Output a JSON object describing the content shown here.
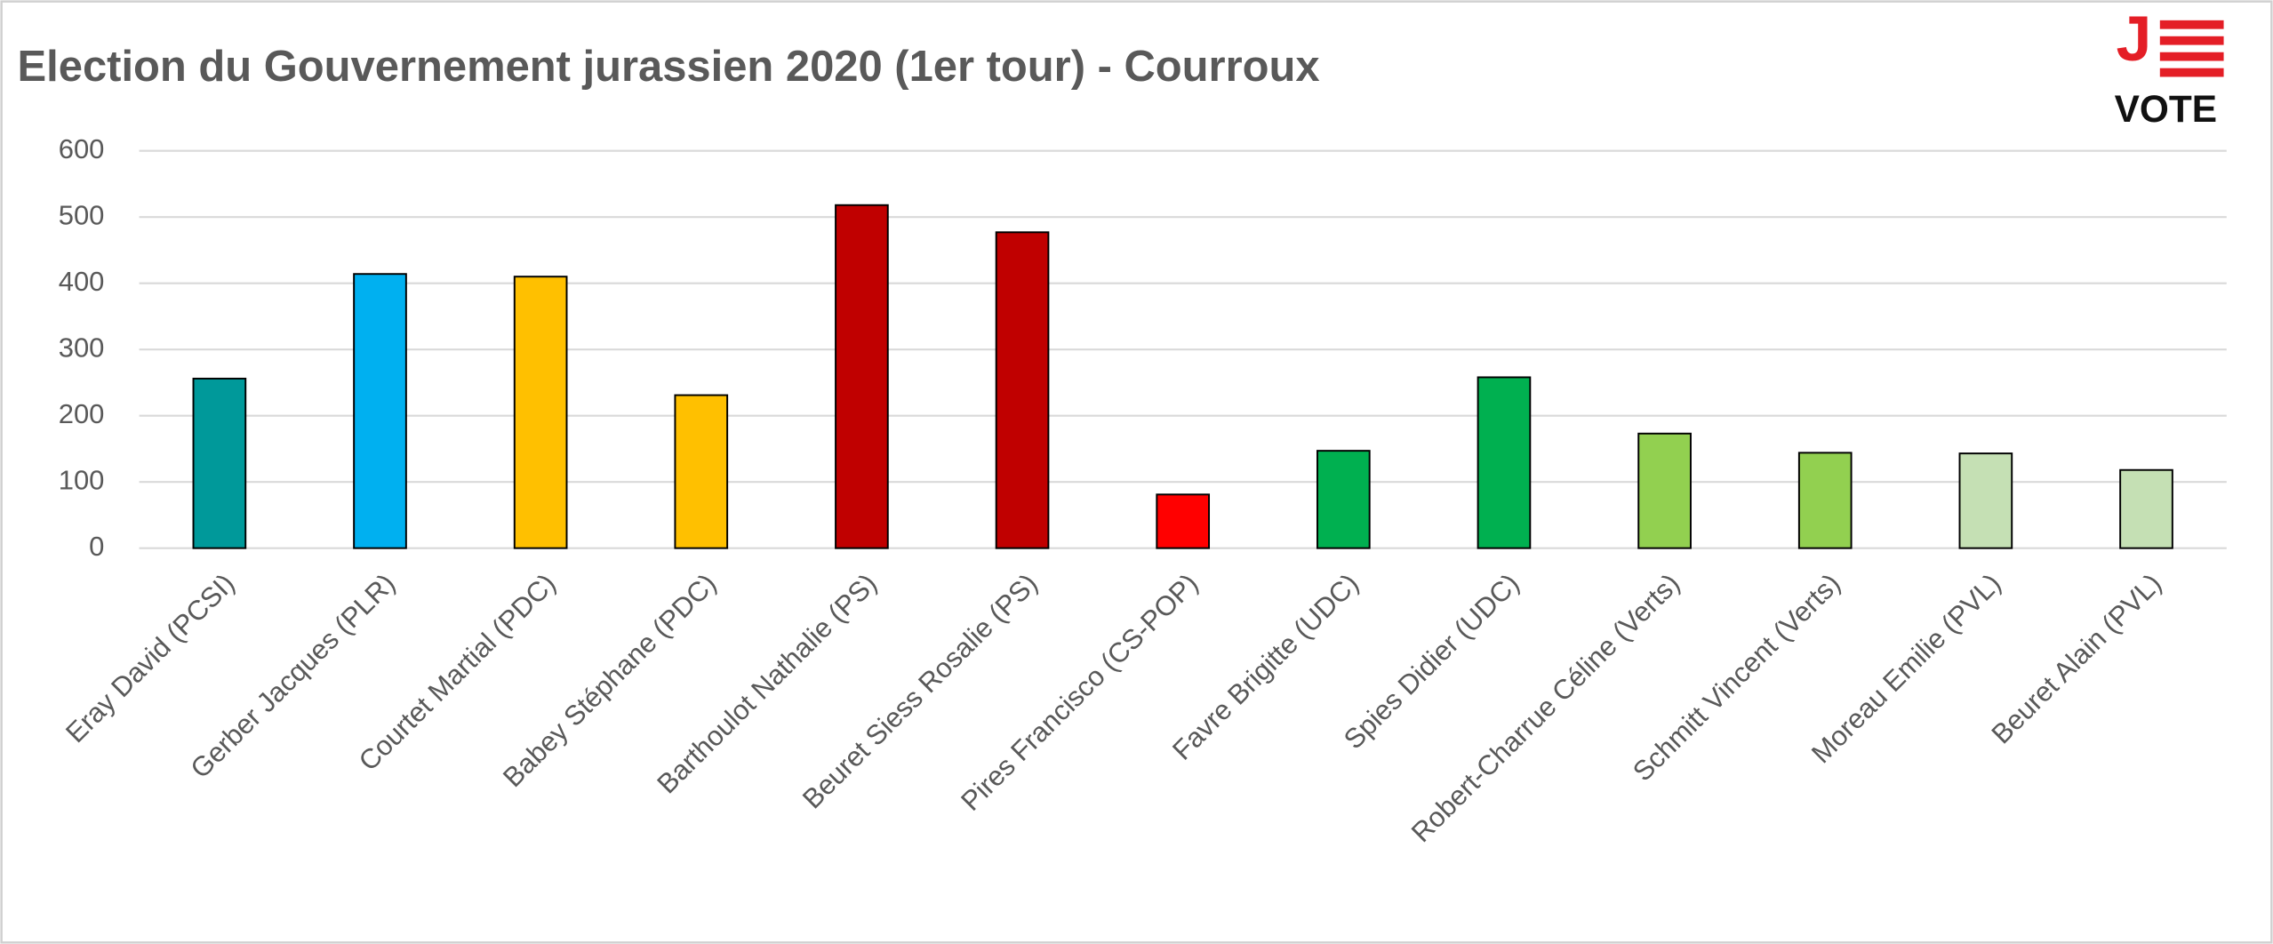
{
  "chart_data": {
    "type": "bar",
    "title": "Election du Gouvernement jurassien 2020 (1er tour) - Courroux",
    "categories": [
      "Eray David (PCSI)",
      "Gerber Jacques (PLR)",
      "Courtet Martial (PDC)",
      "Babey Stéphane (PDC)",
      "Barthoulot Nathalie (PS)",
      "Beuret Siess Rosalie (PS)",
      "Pires Francisco (CS-POP)",
      "Favre Brigitte (UDC)",
      "Spies Didier (UDC)",
      "Robert-Charrue Céline (Verts)",
      "Schmitt Vincent (Verts)",
      "Moreau Emilie (PVL)",
      "Beuret Alain (PVL)"
    ],
    "values": [
      256,
      414,
      410,
      231,
      518,
      477,
      81,
      147,
      258,
      173,
      144,
      143,
      118
    ],
    "colors": [
      "#00999a",
      "#00b0f0",
      "#ffc000",
      "#ffc000",
      "#c00000",
      "#c00000",
      "#ff0000",
      "#00b050",
      "#00b050",
      "#92d050",
      "#92d050",
      "#c5e0b4",
      "#c5e0b4"
    ],
    "ylim": [
      0,
      600
    ],
    "yticks": [
      0,
      100,
      200,
      300,
      400,
      500,
      600
    ],
    "grid": true,
    "logo": {
      "letter": "J",
      "text": "VOTE"
    }
  }
}
